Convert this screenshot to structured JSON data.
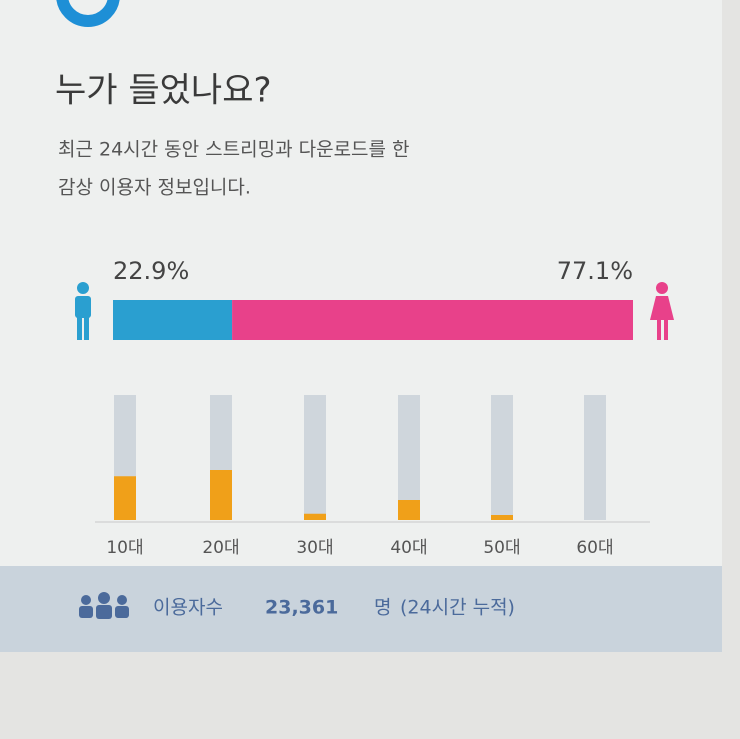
{
  "header": {
    "title": "누가 들었나요?",
    "description": [
      "최근 24시간 동안 스트리밍과 다운로드를 한",
      "감상 이용자 정보입니다."
    ]
  },
  "chart_data": [
    {
      "type": "stacked-bar",
      "xlim": [
        0,
        100
      ],
      "series": [
        {
          "color": "#2a9fd0",
          "values": [
            22.9
          ],
          "value_labels": [
            "22.9%"
          ]
        },
        {
          "color": "#e8418a",
          "values": [
            77.1
          ],
          "value_labels": [
            "77.1%"
          ]
        }
      ]
    },
    {
      "type": "bar",
      "categories": [
        "10대",
        "20대",
        "30대",
        "40대",
        "50대",
        "60대"
      ],
      "values": [
        35,
        40,
        5,
        16,
        4,
        0
      ],
      "color": "#f0a019",
      "track_color": "#cfd6dc",
      "ylim": [
        0,
        100
      ]
    }
  ],
  "footer": {
    "label": "이용자수",
    "count": "23,361",
    "unit": "명",
    "note": "(24시간 누적)"
  }
}
